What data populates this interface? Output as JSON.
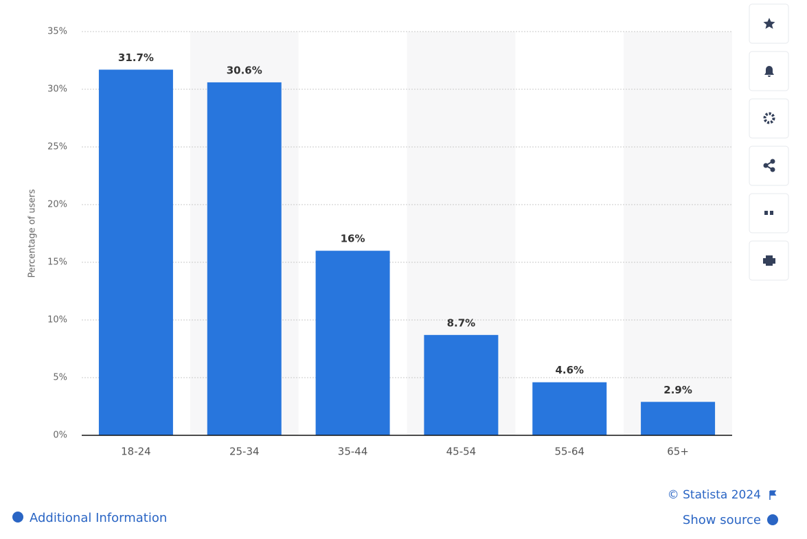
{
  "chart_data": {
    "type": "bar",
    "y_label": "Percentage of users",
    "categories": [
      "18-24",
      "25-34",
      "35-44",
      "45-54",
      "55-64",
      "65+"
    ],
    "values": [
      31.7,
      30.6,
      16,
      8.7,
      4.6,
      2.9
    ],
    "value_labels": [
      "31.7%",
      "30.6%",
      "16%",
      "8.7%",
      "4.6%",
      "2.9%"
    ],
    "color": "#2876dd",
    "ylim": [
      0,
      35
    ],
    "yticks": [
      {
        "value": 0,
        "label": "0%"
      },
      {
        "value": 5,
        "label": "5%"
      },
      {
        "value": 10,
        "label": "10%"
      },
      {
        "value": 15,
        "label": "15%"
      },
      {
        "value": 20,
        "label": "20%"
      },
      {
        "value": 25,
        "label": "25%"
      },
      {
        "value": 30,
        "label": "30%"
      },
      {
        "value": 35,
        "label": "35%"
      }
    ],
    "grid": true
  },
  "footer": {
    "copyright": "© Statista 2024",
    "additional_info": "Additional Information",
    "show_source": "Show source"
  }
}
